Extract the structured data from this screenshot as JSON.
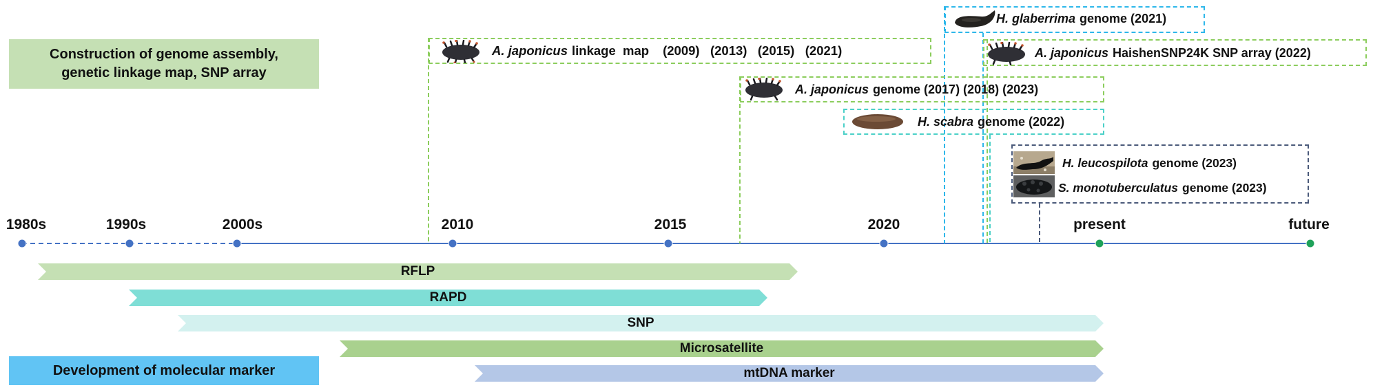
{
  "legend": {
    "genome_line1": "Construction of genome assembly,",
    "genome_line2": "genetic linkage map, SNP array",
    "marker": "Development of molecular marker"
  },
  "timeline": {
    "labels": [
      "1980s",
      "1990s",
      "2000s",
      "2010",
      "2015",
      "2020",
      "present",
      "future"
    ],
    "colors": {
      "axis": "#4472c4",
      "node_past": "#4472c4",
      "node_now": "#1fa25a"
    }
  },
  "markers": [
    {
      "label": "RFLP",
      "color": "#c5e0b4"
    },
    {
      "label": "RAPD",
      "color": "#7fded6"
    },
    {
      "label": "SNP",
      "color": "#d3f1ef"
    },
    {
      "label": "Microsatellite",
      "color": "#a9d18e"
    },
    {
      "label": "mtDNA marker",
      "color": "#b4c7e7"
    }
  ],
  "genome_events": {
    "linkage": {
      "species": "A. japonicus",
      "text": "linkage  map",
      "years": "(2009)   (2013)   (2015)   (2021)"
    },
    "glaberrima": {
      "species": "H. glaberrima",
      "text": "genome (2021)"
    },
    "snp_array": {
      "species": "A. japonicus",
      "text": "HaishenSNP24K SNP array (2022)"
    },
    "aj_genome": {
      "species": "A. japonicus",
      "text": "genome (2017) (2018) (2023)"
    },
    "scabra": {
      "species": "H. scabra",
      "text": "genome (2022)"
    },
    "leucospilota": {
      "species": "H. leucospilota",
      "text": "genome (2023)"
    },
    "monotuberculatus": {
      "species": "S. monotuberculatus",
      "text": "genome (2023)"
    }
  },
  "icons": [
    "sea-cucumber-japonicus-icon",
    "sea-cucumber-glaberrima-icon",
    "sea-cucumber-scabra-icon",
    "sea-cucumber-leucospilota-photo",
    "sea-cucumber-monotuberculatus-photo"
  ]
}
